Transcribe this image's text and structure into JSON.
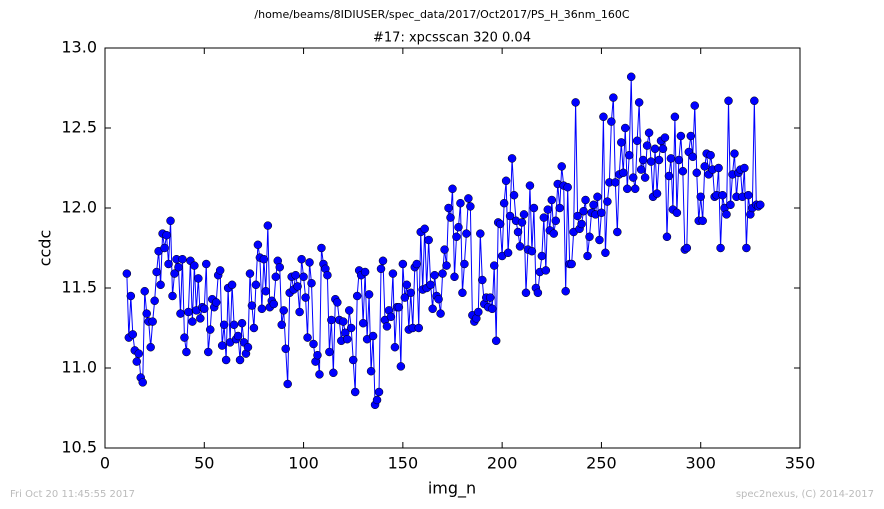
{
  "header": "/home/beams/8IDIUSER/spec_data/2017/Oct2017/PS_H_36nm_160C",
  "footer": {
    "left": "Fri Oct 20 11:45:55 2017",
    "right": "spec2nexus, (C) 2014-2017"
  },
  "chart_data": {
    "type": "line",
    "title": "#17: xpcsscan 320 0.04",
    "x_label": "img_n",
    "y_label": "ccdc",
    "color": "#0000ff",
    "marker": "circle",
    "xlim": [
      0,
      350
    ],
    "xticks": [
      0,
      50,
      100,
      150,
      200,
      250,
      300,
      350
    ],
    "ylim": [
      10.5,
      13.0
    ],
    "yticks": [
      {
        "value": 10.5,
        "label": "10.5"
      },
      {
        "value": 11,
        "label": "11.0"
      },
      {
        "value": 11.5,
        "label": "11.5"
      },
      {
        "value": 12,
        "label": "12.0"
      },
      {
        "value": 12.5,
        "label": "12.5"
      },
      {
        "value": 13,
        "label": "13.0"
      }
    ],
    "x": [
      11,
      12,
      13,
      14,
      15,
      16,
      17,
      18,
      19,
      20,
      21,
      22,
      23,
      24,
      25,
      26,
      27,
      28,
      29,
      30,
      31,
      32,
      33,
      34,
      35,
      36,
      37,
      38,
      39,
      40,
      41,
      42,
      43,
      44,
      45,
      46,
      47,
      48,
      49,
      50,
      51,
      52,
      53,
      54,
      55,
      56,
      57,
      58,
      59,
      60,
      61,
      62,
      63,
      64,
      65,
      66,
      67,
      68,
      69,
      70,
      71,
      72,
      73,
      74,
      75,
      76,
      77,
      78,
      79,
      80,
      81,
      82,
      83,
      84,
      85,
      86,
      87,
      88,
      89,
      90,
      91,
      92,
      93,
      94,
      95,
      96,
      97,
      98,
      99,
      100,
      101,
      102,
      103,
      104,
      105,
      106,
      107,
      108,
      109,
      110,
      111,
      112,
      113,
      114,
      115,
      116,
      117,
      118,
      119,
      120,
      121,
      122,
      123,
      124,
      125,
      126,
      127,
      128,
      129,
      130,
      131,
      132,
      133,
      134,
      135,
      136,
      137,
      138,
      139,
      140,
      141,
      142,
      143,
      144,
      145,
      146,
      147,
      148,
      149,
      150,
      151,
      152,
      153,
      154,
      155,
      156,
      157,
      158,
      159,
      160,
      161,
      162,
      163,
      164,
      165,
      166,
      167,
      168,
      169,
      170,
      171,
      172,
      173,
      174,
      175,
      176,
      177,
      178,
      179,
      180,
      181,
      182,
      183,
      184,
      185,
      186,
      187,
      188,
      189,
      190,
      191,
      192,
      193,
      194,
      195,
      196,
      197,
      198,
      199,
      200,
      201,
      202,
      203,
      204,
      205,
      206,
      207,
      208,
      209,
      210,
      211,
      212,
      213,
      214,
      215,
      216,
      217,
      218,
      219,
      220,
      221,
      222,
      223,
      224,
      225,
      226,
      227,
      228,
      229,
      230,
      231,
      232,
      233,
      234,
      235,
      236,
      237,
      238,
      239,
      240,
      241,
      242,
      243,
      244,
      245,
      246,
      247,
      248,
      249,
      250,
      251,
      252,
      253,
      254,
      255,
      256,
      257,
      258,
      259,
      260,
      261,
      262,
      263,
      264,
      265,
      266,
      267,
      268,
      269,
      270,
      271,
      272,
      273,
      274,
      275,
      276,
      277,
      278,
      279,
      280,
      281,
      282,
      283,
      284,
      285,
      286,
      287,
      288,
      289,
      290,
      291,
      292,
      293,
      294,
      295,
      296,
      297,
      298,
      299,
      300,
      301,
      302,
      303,
      304,
      305,
      306,
      307,
      308,
      309,
      310,
      311,
      312,
      313,
      314,
      315,
      316,
      317,
      318,
      319,
      320,
      321,
      322,
      323,
      324,
      325,
      326,
      327,
      328,
      329,
      330
    ],
    "values": [
      11.59,
      11.19,
      11.45,
      11.21,
      11.11,
      11.04,
      11.09,
      10.94,
      10.91,
      11.48,
      11.34,
      11.29,
      11.13,
      11.29,
      11.42,
      11.6,
      11.73,
      11.52,
      11.84,
      11.75,
      11.83,
      11.65,
      11.92,
      11.45,
      11.59,
      11.68,
      11.63,
      11.34,
      11.68,
      11.19,
      11.1,
      11.35,
      11.67,
      11.29,
      11.64,
      11.36,
      11.56,
      11.31,
      11.38,
      11.37,
      11.65,
      11.1,
      11.24,
      11.43,
      11.38,
      11.41,
      11.58,
      11.61,
      11.14,
      11.27,
      11.05,
      11.5,
      11.16,
      11.52,
      11.27,
      11.18,
      11.2,
      11.05,
      11.28,
      11.16,
      11.09,
      11.13,
      11.59,
      11.39,
      11.25,
      11.52,
      11.77,
      11.69,
      11.37,
      11.68,
      11.48,
      11.89,
      11.38,
      11.42,
      11.4,
      11.57,
      11.67,
      11.63,
      11.27,
      11.36,
      11.12,
      10.9,
      11.47,
      11.57,
      11.49,
      11.58,
      11.51,
      11.35,
      11.68,
      11.57,
      11.44,
      11.19,
      11.66,
      11.53,
      11.15,
      11.04,
      11.08,
      10.96,
      11.75,
      11.65,
      11.62,
      11.58,
      11.1,
      11.3,
      10.97,
      11.43,
      11.41,
      11.3,
      11.17,
      11.29,
      11.22,
      11.18,
      11.36,
      11.25,
      11.05,
      10.85,
      11.45,
      11.61,
      11.58,
      11.28,
      11.6,
      11.18,
      11.46,
      10.98,
      11.2,
      10.77,
      10.8,
      10.85,
      11.62,
      11.67,
      11.3,
      11.26,
      11.36,
      11.32,
      11.59,
      11.13,
      11.38,
      11.38,
      11.01,
      11.65,
      11.44,
      11.52,
      11.24,
      11.47,
      11.25,
      11.63,
      11.65,
      11.25,
      11.85,
      11.49,
      11.87,
      11.5,
      11.8,
      11.52,
      11.37,
      11.58,
      11.45,
      11.43,
      11.34,
      11.59,
      11.74,
      11.64,
      12.0,
      11.94,
      12.12,
      11.57,
      11.82,
      11.88,
      12.03,
      11.47,
      11.65,
      11.84,
      12.06,
      12.01,
      11.33,
      11.29,
      11.31,
      11.35,
      11.84,
      11.55,
      11.4,
      11.44,
      11.38,
      11.44,
      11.37,
      11.64,
      11.17,
      11.91,
      11.9,
      11.7,
      12.03,
      12.17,
      11.72,
      11.95,
      12.31,
      12.08,
      11.92,
      11.85,
      11.76,
      11.91,
      11.96,
      11.47,
      11.74,
      12.14,
      11.73,
      12.0,
      11.5,
      11.47,
      11.6,
      11.7,
      11.94,
      11.61,
      11.99,
      11.86,
      12.05,
      11.84,
      11.92,
      12.15,
      12.0,
      12.26,
      12.14,
      11.48,
      12.13,
      11.65,
      11.65,
      11.85,
      12.66,
      11.95,
      11.87,
      11.9,
      11.98,
      12.05,
      11.7,
      11.82,
      11.97,
      12.02,
      11.96,
      12.07,
      11.8,
      11.97,
      12.57,
      11.72,
      12.04,
      12.16,
      12.54,
      12.69,
      12.16,
      11.85,
      12.21,
      12.41,
      12.22,
      12.5,
      12.12,
      12.33,
      12.82,
      12.19,
      12.12,
      12.42,
      12.66,
      12.24,
      12.3,
      12.19,
      12.39,
      12.47,
      12.29,
      12.07,
      12.37,
      12.09,
      12.3,
      12.42,
      12.37,
      12.44,
      11.82,
      12.2,
      12.31,
      11.99,
      12.57,
      11.97,
      12.3,
      12.45,
      12.23,
      11.74,
      11.75,
      12.35,
      12.45,
      12.32,
      12.64,
      12.22,
      11.92,
      12.07,
      11.92,
      12.26,
      12.34,
      12.21,
      12.33,
      12.24,
      12.07,
      12.08,
      12.25,
      11.75,
      12.08,
      12.0,
      11.96,
      12.67,
      12.02,
      12.21,
      12.34,
      12.07,
      12.22,
      12.24,
      12.07,
      12.25,
      11.75,
      12.08,
      11.96,
      12.0,
      12.67,
      12.02,
      12.01,
      12.02
    ]
  }
}
